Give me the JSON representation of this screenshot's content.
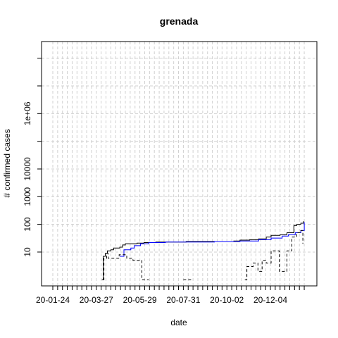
{
  "chart_data": {
    "type": "line",
    "title": "grenada",
    "xlabel": "date",
    "ylabel": "# confirmed cases",
    "y_scale": "log",
    "grid": true,
    "x_tick_labels": [
      "20-01-24",
      "20-03-27",
      "20-05-29",
      "20-07-31",
      "20-10-02",
      "20-12-04"
    ],
    "y_tick_labels": [
      "10",
      "100",
      "1000",
      "10000",
      "1e+06"
    ],
    "y_tick_values": [
      10,
      100,
      1000,
      10000,
      1000000
    ],
    "y_grid_values": [
      10,
      100,
      1000,
      10000,
      100000,
      1000000,
      10000000,
      100000000
    ],
    "xlim": [
      "2020-01-04",
      "2021-01-05"
    ],
    "ylim": [
      0.6,
      400000000
    ],
    "series": [
      {
        "color": "#000000",
        "style": "solid",
        "points": [
          [
            "2020-03-15",
            1
          ],
          [
            "2020-03-16",
            1
          ],
          [
            "2020-03-17",
            7
          ],
          [
            "2020-03-20",
            9
          ],
          [
            "2020-03-23",
            11
          ],
          [
            "2020-03-28",
            12
          ],
          [
            "2020-04-01",
            14
          ],
          [
            "2020-04-10",
            15
          ],
          [
            "2020-04-14",
            18
          ],
          [
            "2020-04-18",
            20
          ],
          [
            "2020-05-05",
            21
          ],
          [
            "2020-05-15",
            22
          ],
          [
            "2020-06-01",
            23
          ],
          [
            "2020-07-15",
            24
          ],
          [
            "2020-08-20",
            24
          ],
          [
            "2020-09-22",
            25
          ],
          [
            "2020-10-01",
            27
          ],
          [
            "2020-10-15",
            28
          ],
          [
            "2020-10-28",
            30
          ],
          [
            "2020-11-08",
            35
          ],
          [
            "2020-11-15",
            40
          ],
          [
            "2020-11-28",
            42
          ],
          [
            "2020-12-08",
            50
          ],
          [
            "2020-12-18",
            90
          ],
          [
            "2020-12-22",
            100
          ],
          [
            "2020-12-28",
            110
          ],
          [
            "2021-01-01",
            130
          ]
        ]
      },
      {
        "color": "#0000ff",
        "style": "solid",
        "points": [
          [
            "2020-04-10",
            7
          ],
          [
            "2020-04-16",
            12
          ],
          [
            "2020-04-24",
            12
          ],
          [
            "2020-04-26",
            14
          ],
          [
            "2020-05-01",
            17
          ],
          [
            "2020-05-10",
            20
          ],
          [
            "2020-05-22",
            22
          ],
          [
            "2020-06-15",
            23
          ],
          [
            "2020-07-20",
            23
          ],
          [
            "2020-08-25",
            24
          ],
          [
            "2020-09-22",
            24
          ],
          [
            "2020-10-01",
            25
          ],
          [
            "2020-10-28",
            28
          ],
          [
            "2020-11-15",
            32
          ],
          [
            "2020-12-01",
            38
          ],
          [
            "2020-12-10",
            42
          ],
          [
            "2020-12-20",
            50
          ],
          [
            "2020-12-28",
            60
          ],
          [
            "2021-01-02",
            120
          ]
        ]
      },
      {
        "color": "#000000",
        "style": "dashed",
        "points": [
          [
            "2020-03-17",
            1
          ],
          [
            "2020-03-18",
            6
          ],
          [
            "2020-03-22",
            9
          ],
          [
            "2020-03-24",
            6
          ],
          [
            "2020-03-28",
            6
          ],
          [
            "2020-04-03",
            6
          ],
          [
            "2020-04-06",
            6
          ],
          [
            "2020-04-09",
            8
          ],
          [
            "2020-04-18",
            8
          ],
          [
            "2020-04-20",
            6
          ],
          [
            "2020-04-26",
            6
          ],
          [
            "2020-04-29",
            5
          ],
          [
            "2020-05-08",
            5
          ],
          [
            "2020-05-12",
            1
          ],
          [
            "2020-05-22",
            1
          ],
          null,
          [
            "2020-07-11",
            1
          ],
          [
            "2020-07-23",
            1
          ],
          null,
          [
            "2020-10-08",
            1
          ],
          [
            "2020-10-11",
            3
          ],
          [
            "2020-10-20",
            4
          ],
          [
            "2020-10-27",
            2
          ],
          [
            "2020-11-02",
            5
          ],
          [
            "2020-11-08",
            4
          ],
          [
            "2020-11-15",
            11
          ],
          [
            "2020-11-25",
            11
          ],
          [
            "2020-11-27",
            2
          ],
          [
            "2020-12-02",
            2
          ],
          [
            "2020-12-08",
            11
          ],
          [
            "2020-12-15",
            35
          ],
          [
            "2020-12-22",
            50
          ],
          [
            "2020-12-28",
            60
          ],
          [
            "2020-12-31",
            20
          ]
        ]
      }
    ]
  }
}
